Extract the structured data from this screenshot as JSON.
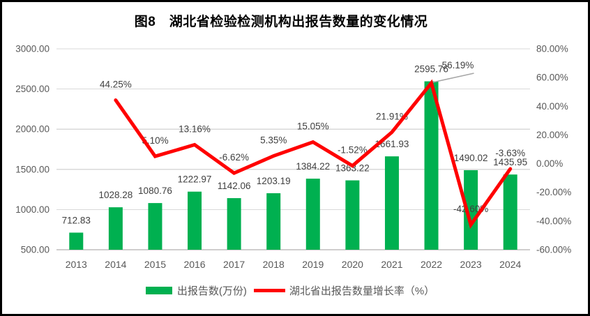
{
  "title": "图8　湖北省检验检测机构出报告数量的变化情况",
  "legend": {
    "bar_label": "出报告数(万份)",
    "line_label": "湖北省出报告数量增长率（%）"
  },
  "colors": {
    "bar": "#00B050",
    "line": "#FF0000",
    "grid": "#D9D9D9",
    "axis_line": "#D0CECE",
    "axis_text": "#595959",
    "label_text": "#404040",
    "leader": "#A6A6A6",
    "border": "#000000",
    "background": "#FFFFFF"
  },
  "chart_data": {
    "type": "combo-bar-line",
    "title": "图8　湖北省检验检测机构出报告数量的变化情况",
    "categories": [
      "2013",
      "2014",
      "2015",
      "2016",
      "2017",
      "2018",
      "2019",
      "2020",
      "2021",
      "2022",
      "2023",
      "2024"
    ],
    "series": [
      {
        "name": "出报告数(万份)",
        "type": "bar",
        "axis": "left",
        "color": "#00B050",
        "values": [
          712.83,
          1028.28,
          1080.76,
          1222.97,
          1142.06,
          1203.19,
          1384.22,
          1363.22,
          1661.93,
          2595.76,
          1490.02,
          1435.95
        ],
        "labels": [
          "712.83",
          "1028.28",
          "1080.76",
          "1222.97",
          "1142.06",
          "1203.19",
          "1384.22",
          "1363.22",
          "1661.93",
          "2595.76",
          "1490.02",
          "1435.95"
        ]
      },
      {
        "name": "湖北省出报告数量增长率（%）",
        "type": "line",
        "axis": "right",
        "color": "#FF0000",
        "values": [
          null,
          44.25,
          5.1,
          13.16,
          -6.62,
          5.35,
          15.05,
          -1.52,
          21.91,
          56.19,
          -42.6,
          -3.63
        ],
        "labels": [
          null,
          "44.25%",
          "5.10%",
          "13.16%",
          "-6.62%",
          "5.35%",
          "15.05%",
          "-1.52%",
          "21.91%",
          "56.19%",
          "-42.60%",
          "-3.63%"
        ]
      }
    ],
    "left_axis": {
      "min": 500,
      "max": 3000,
      "step": 500,
      "tick_labels": [
        "500.00",
        "1000.00",
        "1500.00",
        "2000.00",
        "2500.00",
        "3000.00"
      ]
    },
    "right_axis": {
      "min": -60,
      "max": 80,
      "step": 20,
      "tick_labels": [
        "-60.00%",
        "-40.00%",
        "-20.00%",
        "0.00%",
        "20.00%",
        "40.00%",
        "60.00%",
        "80.00%"
      ]
    },
    "grid": true,
    "legend_position": "bottom",
    "annotations": [
      {
        "type": "leader-line",
        "category": "2022",
        "label": "56.19%",
        "note": "growth-rate label offset up-right of peak with gray leader line"
      }
    ]
  }
}
